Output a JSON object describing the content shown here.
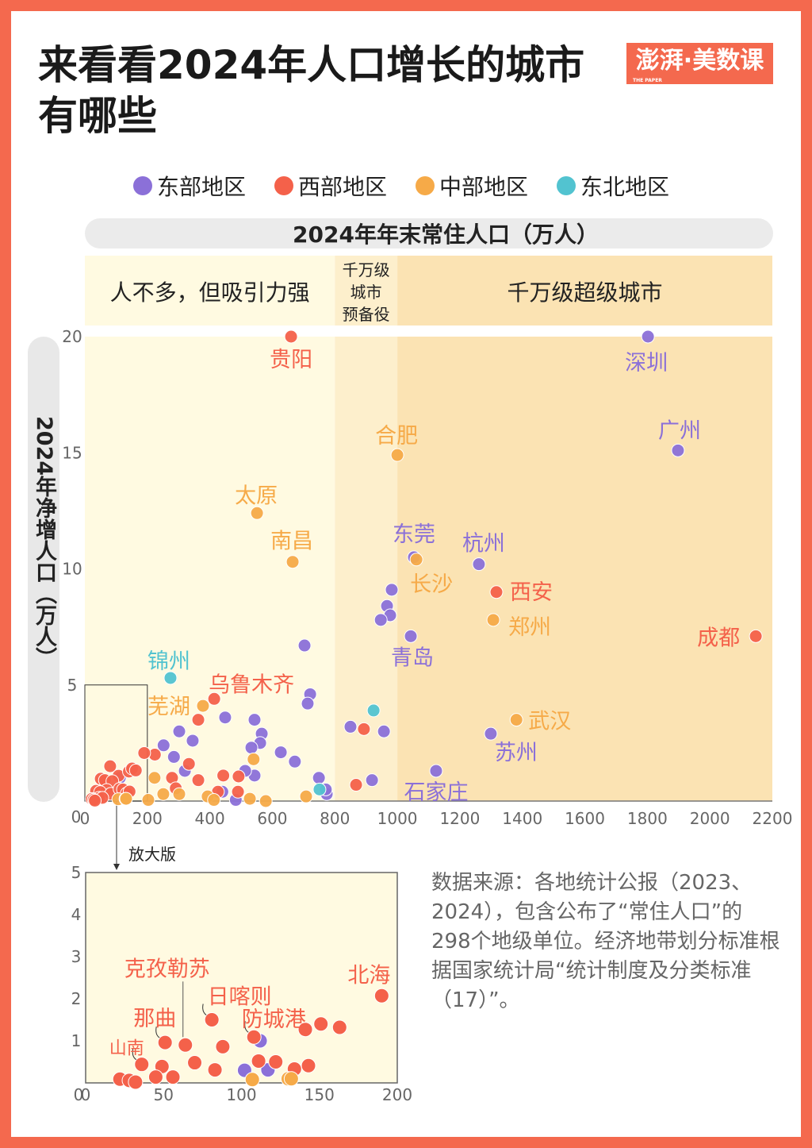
{
  "title": "来看看2024年人口增长的城市有哪些",
  "logo": {
    "text": "澎湃·美数课",
    "sub": "THE PAPER"
  },
  "legend": [
    {
      "label": "东部地区",
      "color": "#8b70d8"
    },
    {
      "label": "西部地区",
      "color": "#f4614a"
    },
    {
      "label": "中部地区",
      "color": "#f6aa48"
    },
    {
      "label": "东北地区",
      "color": "#52c3d0"
    }
  ],
  "source": "数据来源：各地统计公报（2023、2024），包含公布了“常住人口”的298个地级单位。经济地带划分标准根据国家统计局“统计制度及分类标准（17）”。",
  "inset_label": "放大版",
  "chart_data": {
    "type": "scatter",
    "xlabel": "2024年年末常住人口（万人）",
    "ylabel": "2024年净增人口（万人）",
    "xlim": [
      0,
      2200
    ],
    "ylim": [
      0,
      20
    ],
    "xticks": [
      "0",
      "200",
      "400",
      "600",
      "800",
      "1000",
      "1200",
      "1400",
      "1600",
      "1800",
      "2000",
      "2200"
    ],
    "yticks": [
      "0",
      "5",
      "10",
      "15",
      "20"
    ],
    "zones": [
      {
        "label": "人不多，但吸引力强",
        "from": 0,
        "to": 800,
        "color": "#fffae1"
      },
      {
        "label": "千万级城市预备役",
        "from": 800,
        "to": 1000,
        "color": "#fdefcc"
      },
      {
        "label": "千万级超级城市",
        "from": 1000,
        "to": 2200,
        "color": "#fbe3b3"
      }
    ],
    "inset": {
      "xlim": [
        0,
        200
      ],
      "ylim": [
        0,
        5
      ],
      "xticks": [
        "0",
        "50",
        "100",
        "150",
        "200"
      ],
      "yticks": [
        "0",
        "1",
        "2",
        "3",
        "4",
        "5"
      ]
    },
    "series": [
      {
        "name": "东部地区",
        "color": "#8b70d8",
        "points": [
          {
            "x": 1802,
            "y": 20,
            "label": "深圳"
          },
          {
            "x": 1898,
            "y": 15.1,
            "label": "广州"
          },
          {
            "x": 1053,
            "y": 10.5,
            "label": "东莞"
          },
          {
            "x": 1261,
            "y": 10.2,
            "label": "杭州"
          },
          {
            "x": 1043,
            "y": 7.1,
            "label": "青岛"
          },
          {
            "x": 1299,
            "y": 2.9,
            "label": "苏州"
          },
          {
            "x": 1124,
            "y": 1.3,
            "label": "石家庄"
          },
          {
            "x": 982,
            "y": 9.1
          },
          {
            "x": 967,
            "y": 8.4
          },
          {
            "x": 977,
            "y": 8.0
          },
          {
            "x": 947,
            "y": 7.8
          },
          {
            "x": 703,
            "y": 6.7
          },
          {
            "x": 721,
            "y": 4.6
          },
          {
            "x": 713,
            "y": 4.2
          },
          {
            "x": 449,
            "y": 3.6
          },
          {
            "x": 543,
            "y": 3.5
          },
          {
            "x": 566,
            "y": 2.9
          },
          {
            "x": 561,
            "y": 2.5
          },
          {
            "x": 533,
            "y": 2.3
          },
          {
            "x": 302,
            "y": 3.0
          },
          {
            "x": 345,
            "y": 2.6
          },
          {
            "x": 252,
            "y": 2.4
          },
          {
            "x": 285,
            "y": 1.9
          },
          {
            "x": 627,
            "y": 2.1
          },
          {
            "x": 672,
            "y": 1.7
          },
          {
            "x": 850,
            "y": 3.2
          },
          {
            "x": 957,
            "y": 3.0
          },
          {
            "x": 919,
            "y": 0.9
          },
          {
            "x": 749,
            "y": 1.0
          },
          {
            "x": 774,
            "y": 0.3
          },
          {
            "x": 771,
            "y": 0.5
          },
          {
            "x": 543,
            "y": 1.1
          },
          {
            "x": 513,
            "y": 1.3
          },
          {
            "x": 483,
            "y": 0.05
          },
          {
            "x": 320,
            "y": 1.3
          },
          {
            "x": 440,
            "y": 0.4
          },
          {
            "x": 102,
            "y": 0.3
          },
          {
            "x": 112,
            "y": 1.0
          },
          {
            "x": 117,
            "y": 0.31
          }
        ]
      },
      {
        "name": "西部地区",
        "color": "#f4614a",
        "points": [
          {
            "x": 660,
            "y": 20,
            "label": "贵阳"
          },
          {
            "x": 1317,
            "y": 9.0,
            "label": "西安"
          },
          {
            "x": 2147,
            "y": 7.1,
            "label": "成都"
          },
          {
            "x": 414,
            "y": 4.4,
            "label": "乌鲁木齐"
          },
          {
            "x": 893,
            "y": 3.1
          },
          {
            "x": 868,
            "y": 0.7
          },
          {
            "x": 363,
            "y": 3.5
          },
          {
            "x": 224,
            "y": 2.0
          },
          {
            "x": 333,
            "y": 1.6
          },
          {
            "x": 443,
            "y": 1.1
          },
          {
            "x": 492,
            "y": 1.06
          },
          {
            "x": 363,
            "y": 0.9
          },
          {
            "x": 279,
            "y": 1.0
          },
          {
            "x": 490,
            "y": 0.4
          },
          {
            "x": 426,
            "y": 0.4
          },
          {
            "x": 291,
            "y": 0.55
          },
          {
            "x": 190,
            "y": 2.07,
            "label": "北海"
          },
          {
            "x": 81,
            "y": 1.5,
            "label": "日喀则"
          },
          {
            "x": 51,
            "y": 0.96,
            "label": "那曲"
          },
          {
            "x": 64,
            "y": 0.9,
            "label": "克孜勒苏"
          },
          {
            "x": 36,
            "y": 0.44,
            "label": "山南"
          },
          {
            "x": 108,
            "y": 1.09,
            "label": "防城港"
          },
          {
            "x": 88,
            "y": 0.86
          },
          {
            "x": 141,
            "y": 1.27
          },
          {
            "x": 151,
            "y": 1.4
          },
          {
            "x": 163,
            "y": 1.32
          },
          {
            "x": 70,
            "y": 0.48
          },
          {
            "x": 49,
            "y": 0.39
          },
          {
            "x": 83,
            "y": 0.31
          },
          {
            "x": 111,
            "y": 0.52
          },
          {
            "x": 122,
            "y": 0.5
          },
          {
            "x": 134,
            "y": 0.33
          },
          {
            "x": 143,
            "y": 0.41
          },
          {
            "x": 45,
            "y": 0.14
          },
          {
            "x": 56,
            "y": 0.14
          },
          {
            "x": 22,
            "y": 0.09
          },
          {
            "x": 28,
            "y": 0.06
          },
          {
            "x": 32,
            "y": 0.02
          }
        ]
      },
      {
        "name": "中部地区",
        "color": "#f6aa48",
        "points": [
          {
            "x": 1000,
            "y": 14.9,
            "label": "合肥"
          },
          {
            "x": 551,
            "y": 12.4,
            "label": "太原"
          },
          {
            "x": 665,
            "y": 10.3,
            "label": "南昌"
          },
          {
            "x": 1061,
            "y": 10.4,
            "label": "长沙"
          },
          {
            "x": 1307,
            "y": 7.8,
            "label": "郑州"
          },
          {
            "x": 378,
            "y": 4.1,
            "label": "芜湖"
          },
          {
            "x": 1381,
            "y": 3.5,
            "label": "武汉"
          },
          {
            "x": 540,
            "y": 1.8
          },
          {
            "x": 223,
            "y": 1.0
          },
          {
            "x": 708,
            "y": 0.2
          },
          {
            "x": 579,
            "y": 0.0
          },
          {
            "x": 528,
            "y": 0.1
          },
          {
            "x": 393,
            "y": 0.2
          },
          {
            "x": 413,
            "y": 0.05
          },
          {
            "x": 302,
            "y": 0.3
          },
          {
            "x": 251,
            "y": 0.3
          },
          {
            "x": 203,
            "y": 0.05
          },
          {
            "x": 107,
            "y": 0.08
          },
          {
            "x": 130,
            "y": 0.1
          },
          {
            "x": 132,
            "y": 0.1
          }
        ]
      },
      {
        "name": "东北地区",
        "color": "#52c3d0",
        "points": [
          {
            "x": 274,
            "y": 5.3,
            "label": "锦州"
          },
          {
            "x": 924,
            "y": 3.9
          },
          {
            "x": 751,
            "y": 0.5
          }
        ]
      }
    ]
  }
}
